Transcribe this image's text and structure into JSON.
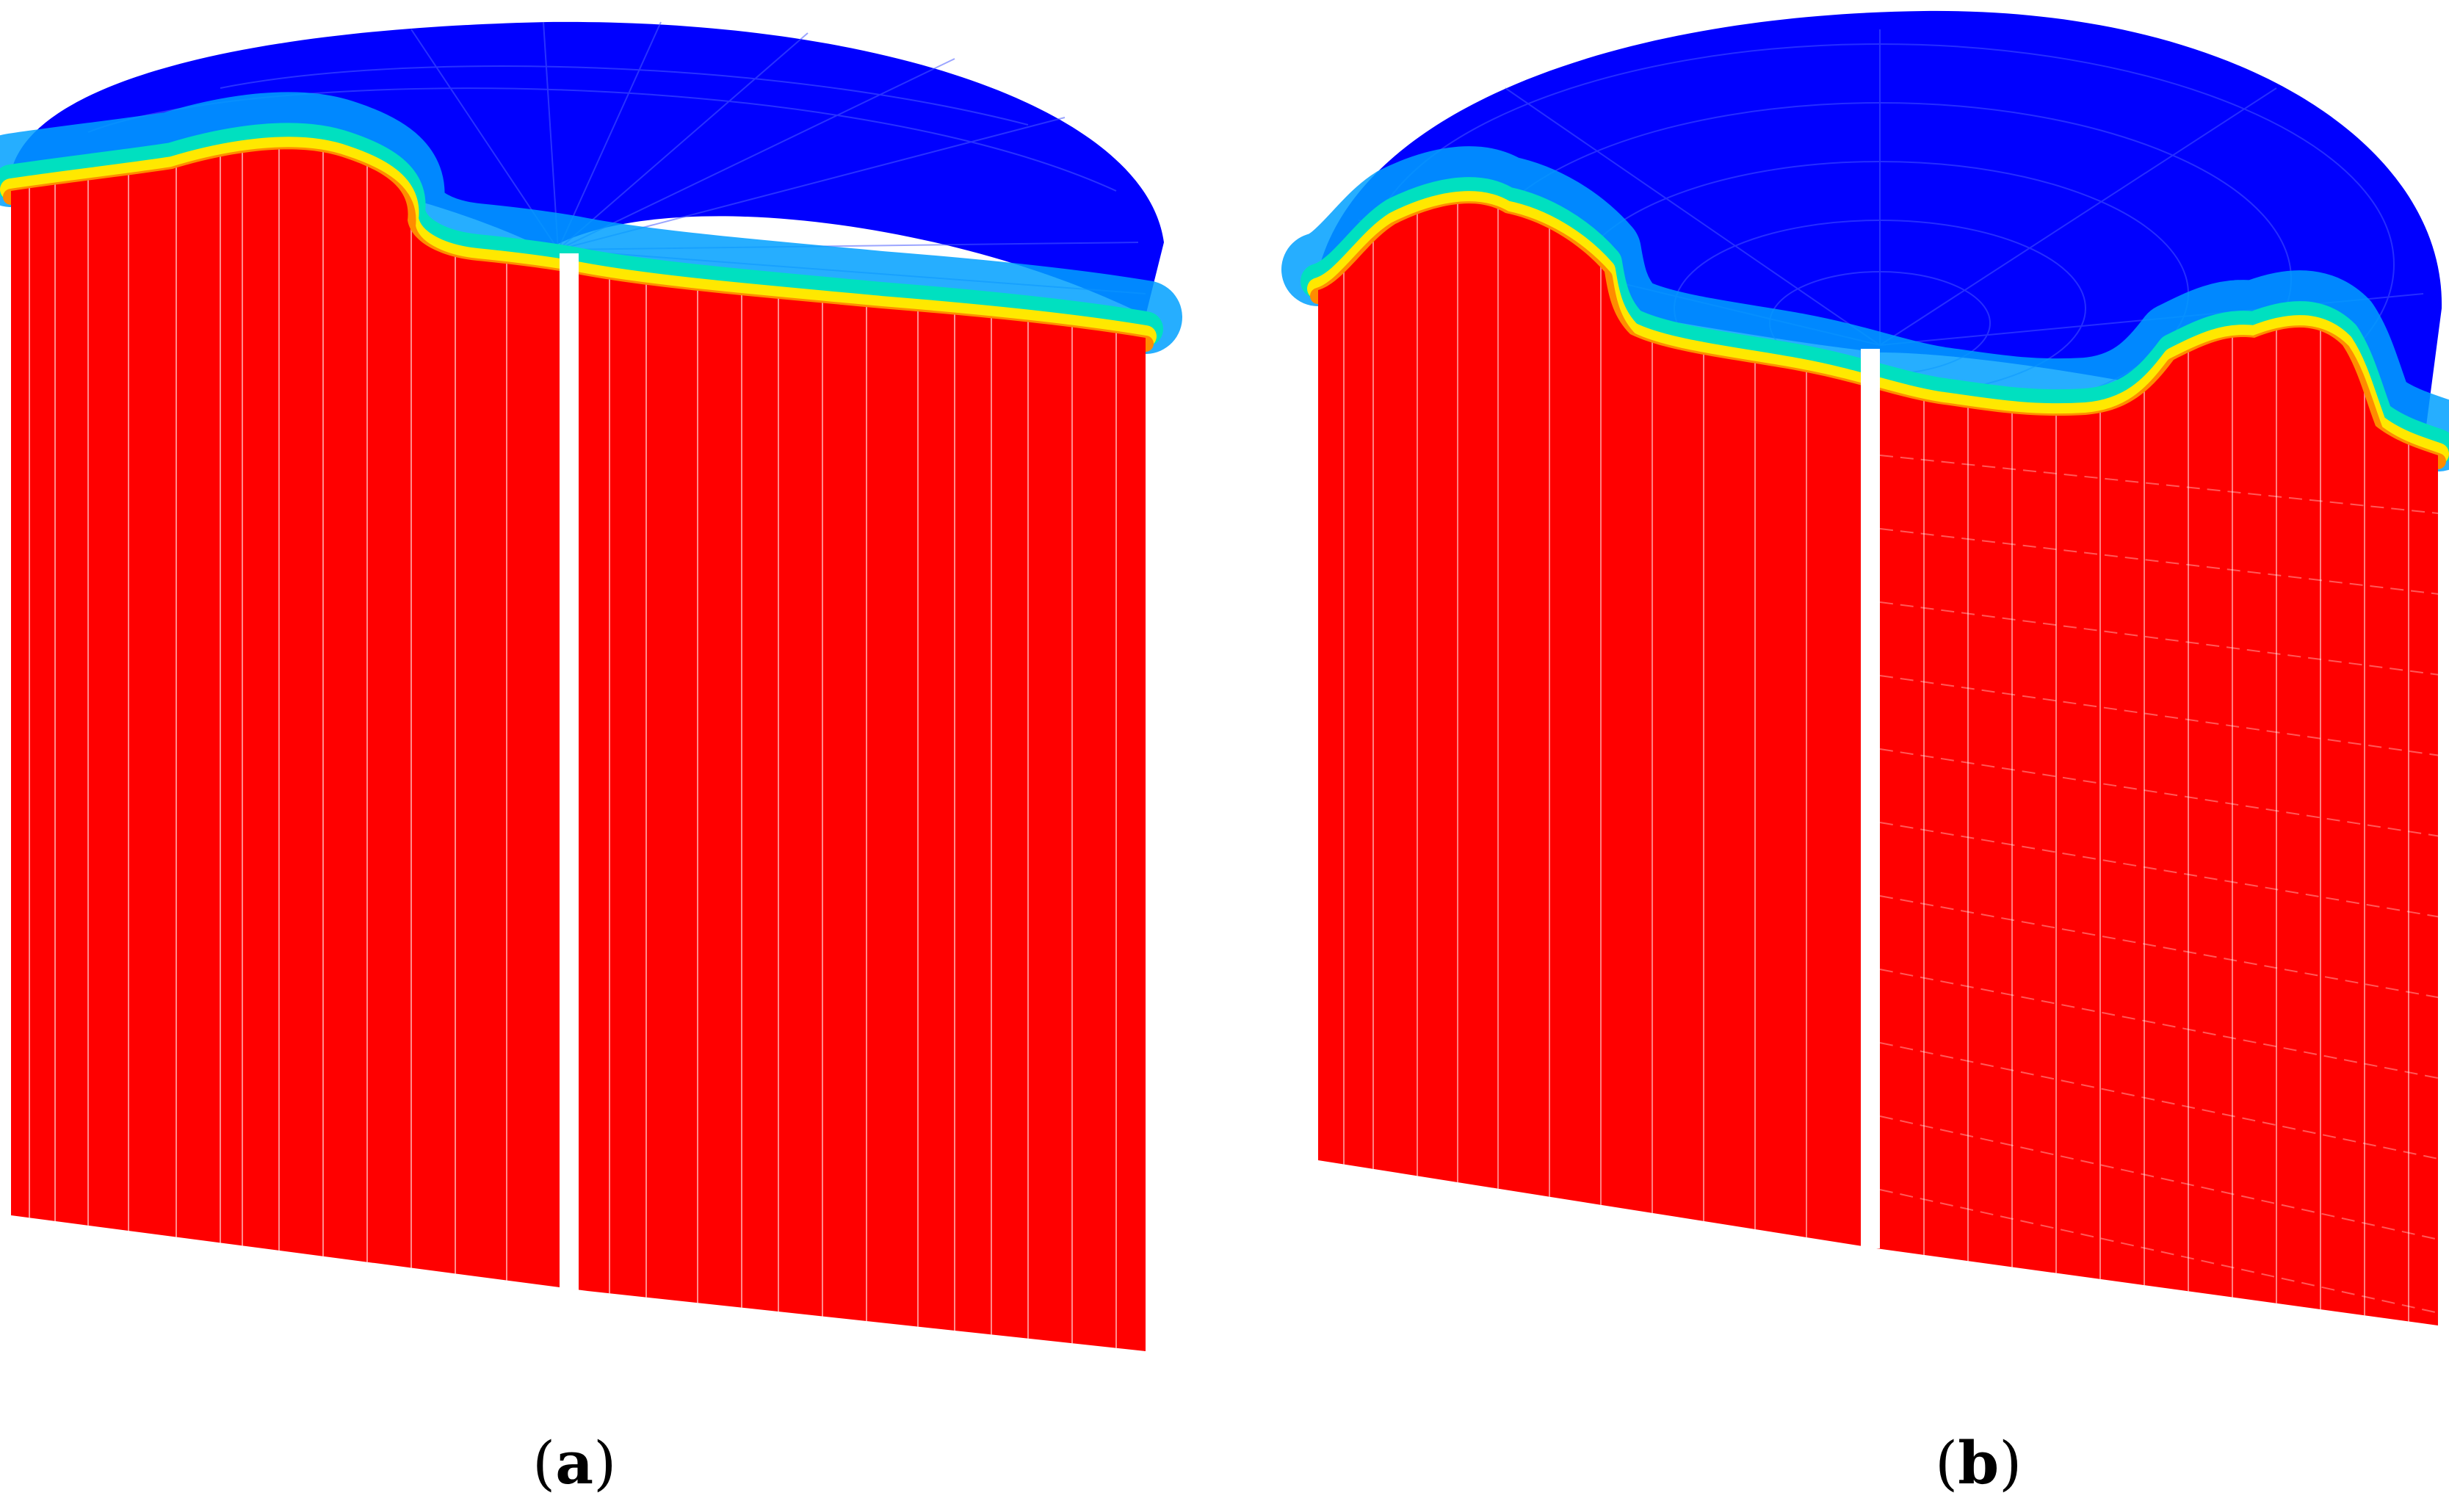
{
  "figure": {
    "panels": [
      {
        "id": "a",
        "open": "(",
        "letter": "a",
        "close": ")"
      },
      {
        "id": "b",
        "open": "(",
        "letter": "b",
        "close": ")"
      }
    ],
    "colors": {
      "upper_phase": "#0000ff",
      "lower_phase": "#ff0000",
      "interface_bands": [
        "#00a0ff",
        "#00e0c0",
        "#ffe800",
        "#ff8c00"
      ],
      "background": "#ffffff",
      "mesh_lines": "#ffffff"
    }
  }
}
